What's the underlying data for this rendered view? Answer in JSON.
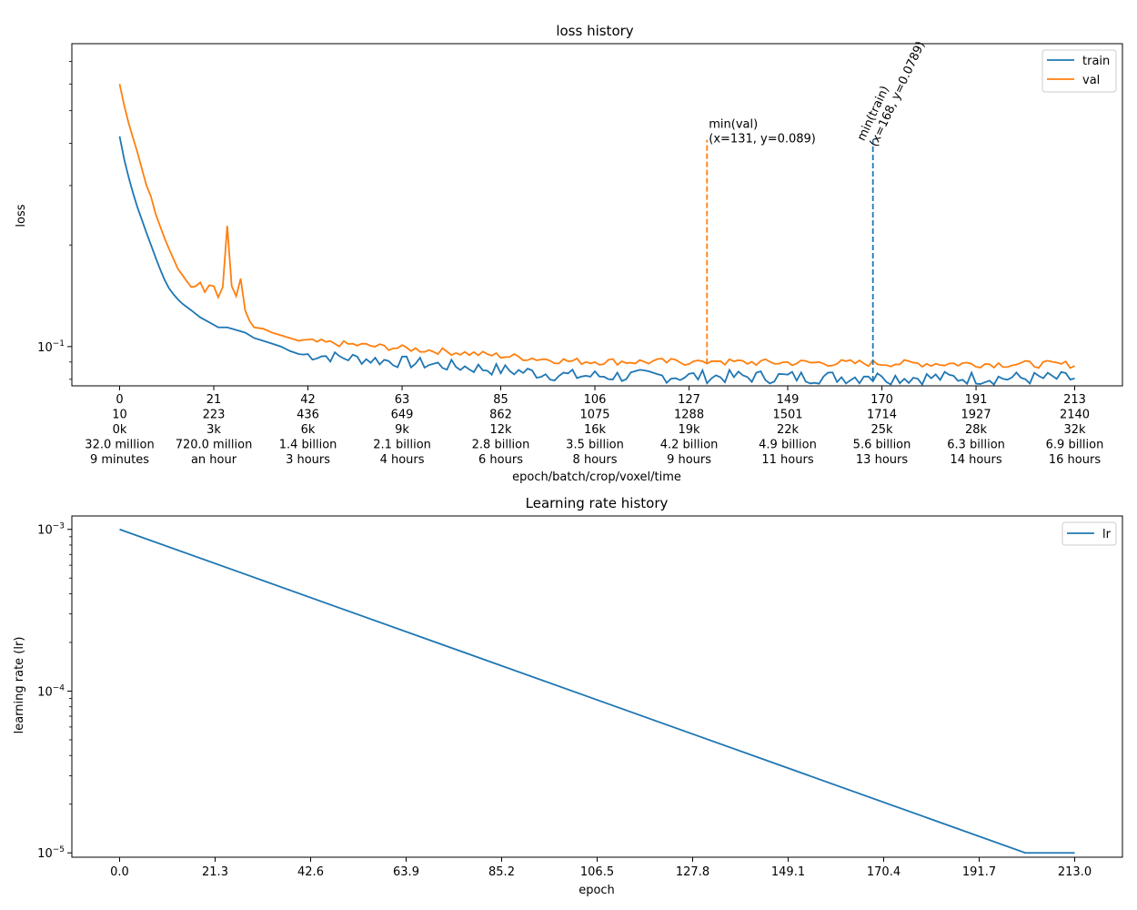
{
  "chart_data": [
    {
      "type": "line",
      "title": "loss history",
      "xlabel": "epoch/batch/crop/voxel/time",
      "ylabel": "loss",
      "yscale": "log",
      "xlim": [
        -10.65,
        223.65
      ],
      "ylim": [
        0.0765,
        0.79
      ],
      "y_tick_label": "10",
      "y_tick_exponent": "−1",
      "y_tick_value": 0.1,
      "x_ticks": [
        {
          "x": 0,
          "lines": [
            "0",
            "10",
            "0k",
            "32.0 million",
            "9 minutes"
          ]
        },
        {
          "x": 21,
          "lines": [
            "21",
            "223",
            "3k",
            "720.0 million",
            "an hour"
          ]
        },
        {
          "x": 42,
          "lines": [
            "42",
            "436",
            "6k",
            "1.4 billion",
            "3 hours"
          ]
        },
        {
          "x": 63,
          "lines": [
            "63",
            "649",
            "9k",
            "2.1 billion",
            "4 hours"
          ]
        },
        {
          "x": 85,
          "lines": [
            "85",
            "862",
            "12k",
            "2.8 billion",
            "6 hours"
          ]
        },
        {
          "x": 106,
          "lines": [
            "106",
            "1075",
            "16k",
            "3.5 billion",
            "8 hours"
          ]
        },
        {
          "x": 127,
          "lines": [
            "127",
            "1288",
            "19k",
            "4.2 billion",
            "9 hours"
          ]
        },
        {
          "x": 149,
          "lines": [
            "149",
            "1501",
            "22k",
            "4.9 billion",
            "11 hours"
          ]
        },
        {
          "x": 170,
          "lines": [
            "170",
            "1714",
            "25k",
            "5.6 billion",
            "13 hours"
          ]
        },
        {
          "x": 191,
          "lines": [
            "191",
            "1927",
            "28k",
            "6.3 billion",
            "14 hours"
          ]
        },
        {
          "x": 213,
          "lines": [
            "213",
            "2140",
            "32k",
            "6.9 billion",
            "16 hours"
          ]
        }
      ],
      "legend_position": "top-right",
      "series": [
        {
          "name": "train",
          "color": "#1f77b4",
          "x": [
            0,
            1,
            2,
            3,
            4,
            5,
            6,
            7,
            8,
            9,
            10,
            11,
            12,
            13,
            14,
            16,
            18,
            20,
            22,
            24,
            26,
            28,
            30,
            32,
            34,
            36,
            38,
            40
          ],
          "y": [
            0.42,
            0.36,
            0.318,
            0.285,
            0.258,
            0.237,
            0.217,
            0.2,
            0.184,
            0.17,
            0.158,
            0.149,
            0.143,
            0.138,
            0.134,
            0.128,
            0.122,
            0.118,
            0.114,
            0.114,
            0.112,
            0.11,
            0.106,
            0.104,
            0.102,
            0.1,
            0.097,
            0.095
          ],
          "noise_x_start": 40,
          "noise_x_end": 213,
          "noise_start": 0.095,
          "noise_mid": 0.082,
          "noise_end": 0.0805
        },
        {
          "name": "val",
          "color": "#ff7f0e",
          "x": [
            0,
            1,
            2,
            3,
            4,
            5,
            6,
            7,
            8,
            9,
            10,
            11,
            12,
            13,
            14,
            15,
            16,
            17,
            18,
            19,
            20,
            21,
            22,
            23,
            24,
            25,
            26,
            27,
            28,
            29,
            30,
            32,
            34,
            36,
            38,
            40
          ],
          "y": [
            0.6,
            0.52,
            0.46,
            0.415,
            0.375,
            0.335,
            0.3,
            0.278,
            0.248,
            0.228,
            0.21,
            0.195,
            0.182,
            0.17,
            0.163,
            0.156,
            0.15,
            0.151,
            0.155,
            0.145,
            0.152,
            0.151,
            0.14,
            0.15,
            0.228,
            0.151,
            0.141,
            0.159,
            0.128,
            0.119,
            0.114,
            0.113,
            0.11,
            0.108,
            0.106,
            0.104
          ],
          "noise_x_start": 40,
          "noise_x_end": 213,
          "noise_start": 0.104,
          "noise_mid": 0.0905,
          "noise_end": 0.0885
        }
      ],
      "annotations": [
        {
          "label_line1": "min(val)",
          "label_line2": "(x=131, y=0.089)",
          "x": 131,
          "y_bottom": 0.089,
          "y_top": 0.41,
          "color": "#ff7f0e",
          "rotation": 0
        },
        {
          "label_line1": "min(train)",
          "label_line2": "(x=168, y=0.0789)",
          "x": 168,
          "y_bottom": 0.0789,
          "y_top": 0.41,
          "color": "#1f77b4",
          "rotation": -65
        }
      ]
    },
    {
      "type": "line",
      "title": "Learning rate history",
      "xlabel": "epoch",
      "ylabel": "learning rate (lr)",
      "yscale": "log",
      "xlim": [
        -10.65,
        223.65
      ],
      "ylim": [
        9.4e-06,
        0.00121
      ],
      "x_ticks": [
        {
          "x": 0,
          "label": "0.0"
        },
        {
          "x": 21.3,
          "label": "21.3"
        },
        {
          "x": 42.6,
          "label": "42.6"
        },
        {
          "x": 63.9,
          "label": "63.9"
        },
        {
          "x": 85.2,
          "label": "85.2"
        },
        {
          "x": 106.5,
          "label": "106.5"
        },
        {
          "x": 127.8,
          "label": "127.8"
        },
        {
          "x": 149.1,
          "label": "149.1"
        },
        {
          "x": 170.4,
          "label": "170.4"
        },
        {
          "x": 191.7,
          "label": "191.7"
        },
        {
          "x": 213.0,
          "label": "213.0"
        }
      ],
      "y_ticks": [
        {
          "value": 0.001,
          "base": "10",
          "exp": "−3"
        },
        {
          "value": 0.0001,
          "base": "10",
          "exp": "−4"
        },
        {
          "value": 1e-05,
          "base": "10",
          "exp": "−5"
        }
      ],
      "legend_position": "top-right",
      "series": [
        {
          "name": "lr",
          "color": "#1f77b4",
          "x": [
            0,
            202,
            213
          ],
          "y": [
            0.001,
            1e-05,
            1e-05
          ]
        }
      ]
    }
  ]
}
